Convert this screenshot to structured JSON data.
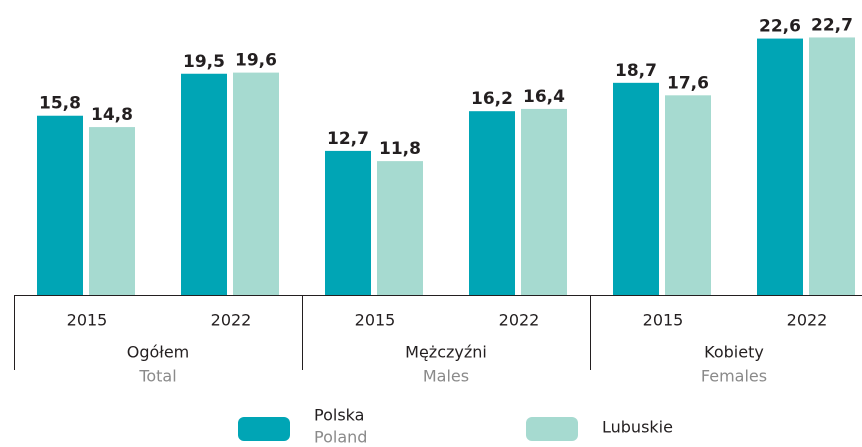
{
  "chart_data": {
    "type": "bar",
    "categories": [
      "2015",
      "2022",
      "2015",
      "2022",
      "2015",
      "2022"
    ],
    "groups": [
      {
        "label": "Ogółem",
        "label_en": "Total"
      },
      {
        "label": "Mężczyźni",
        "label_en": "Males"
      },
      {
        "label": "Kobiety",
        "label_en": "Females"
      }
    ],
    "series": [
      {
        "name": "Polska",
        "name_en": "Poland",
        "color": "#00a5b5",
        "values": [
          15.8,
          19.5,
          12.7,
          16.2,
          18.7,
          22.6
        ],
        "value_labels": [
          "15,8",
          "19,5",
          "12,7",
          "16,2",
          "18,7",
          "22,6"
        ]
      },
      {
        "name": "Lubuskie",
        "color": "#a6dad0",
        "values": [
          14.8,
          19.6,
          11.8,
          16.4,
          17.6,
          22.7
        ],
        "value_labels": [
          "14,8",
          "19,6",
          "11,8",
          "16,4",
          "17,6",
          "22,7"
        ]
      }
    ],
    "ylim": [
      0,
      26
    ]
  }
}
